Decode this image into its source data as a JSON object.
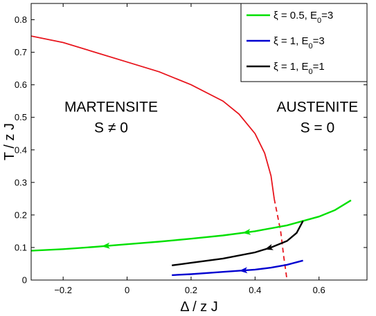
{
  "chart_data": {
    "type": "line",
    "xlabel": "Δ / z J",
    "ylabel": "T / z J",
    "xlim": [
      -0.3,
      0.75
    ],
    "ylim": [
      0,
      0.85
    ],
    "x_ticks": [
      -0.2,
      0,
      0.2,
      0.4,
      0.6
    ],
    "x_tick_labels": [
      "−0.2",
      "0",
      "0.2",
      "0.4",
      "0.6"
    ],
    "y_ticks": [
      0,
      0.1,
      0.2,
      0.3,
      0.4,
      0.5,
      0.6,
      0.7,
      0.8
    ],
    "y_tick_labels": [
      "0",
      "0.1",
      "0.2",
      "0.3",
      "0.4",
      "0.5",
      "0.6",
      "0.7",
      "0.8"
    ],
    "grid": false,
    "legend_position": "top-right",
    "annotations": [
      {
        "line1": "MARTENSITE",
        "line2": "S ≠ 0",
        "x": -0.05,
        "y": 0.5
      },
      {
        "line1": "AUSTENITE",
        "line2": "S = 0",
        "x": 0.595,
        "y": 0.5
      }
    ],
    "phase_boundary": {
      "color": "#e8141c",
      "solid": {
        "x": [
          -0.3,
          -0.2,
          -0.1,
          0.0,
          0.1,
          0.2,
          0.3,
          0.35,
          0.4,
          0.43,
          0.45,
          0.46
        ],
        "y": [
          0.75,
          0.73,
          0.7,
          0.67,
          0.64,
          0.6,
          0.55,
          0.51,
          0.45,
          0.39,
          0.32,
          0.25
        ]
      },
      "dashed": {
        "x": [
          0.46,
          0.48,
          0.49,
          0.5
        ],
        "y": [
          0.25,
          0.15,
          0.07,
          0.0
        ]
      }
    },
    "series": [
      {
        "legend_xi": "ξ = 0.5, E",
        "legend_sub": "0",
        "legend_rest": "=3",
        "color": "#00e000",
        "x": [
          -0.3,
          -0.2,
          -0.1,
          0.0,
          0.1,
          0.2,
          0.3,
          0.4,
          0.5,
          0.6,
          0.65,
          0.7
        ],
        "y": [
          0.09,
          0.095,
          0.102,
          0.11,
          0.118,
          0.127,
          0.137,
          0.15,
          0.168,
          0.195,
          0.215,
          0.245
        ],
        "arrows_at": [
          -0.08,
          0.36
        ]
      },
      {
        "legend_xi": "ξ = 1, E",
        "legend_sub": "0",
        "legend_rest": "=3",
        "color": "#0000d0",
        "x": [
          0.14,
          0.2,
          0.3,
          0.4,
          0.45,
          0.5,
          0.55
        ],
        "y": [
          0.015,
          0.018,
          0.025,
          0.032,
          0.038,
          0.047,
          0.06
        ],
        "arrows_at": [
          0.35
        ]
      },
      {
        "legend_xi": "ξ = 1, E",
        "legend_sub": "0",
        "legend_rest": "=1",
        "color": "#000000",
        "x": [
          0.14,
          0.2,
          0.3,
          0.4,
          0.45,
          0.5,
          0.53,
          0.55
        ],
        "y": [
          0.045,
          0.053,
          0.066,
          0.085,
          0.1,
          0.12,
          0.145,
          0.182
        ],
        "arrows_at": [
          0.43
        ]
      }
    ]
  }
}
